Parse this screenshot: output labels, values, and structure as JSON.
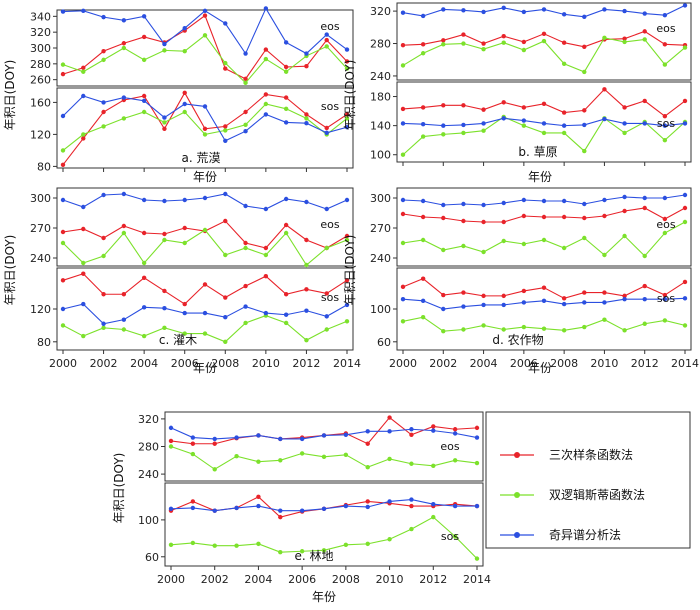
{
  "figure": {
    "xlabel": "年份",
    "ylabel": "年积日(DOY)",
    "eos_label": "eos",
    "sos_label": "sos"
  },
  "legend": {
    "placement": "right of panel e",
    "entries": [
      {
        "label": "三次样条函数法",
        "color": "#e8232a"
      },
      {
        "label": "双逻辑斯蒂函数法",
        "color": "#7ce12b"
      },
      {
        "label": "奇异谱分析法",
        "color": "#2b4fe0"
      }
    ]
  },
  "chart_data": [
    {
      "type": "line",
      "title": "a. 荒漠",
      "x": [
        2000,
        2001,
        2002,
        2003,
        2004,
        2005,
        2006,
        2007,
        2008,
        2009,
        2010,
        2011,
        2012,
        2013,
        2014
      ],
      "xticks": [],
      "eos_yticks": [
        260,
        280,
        300,
        320,
        340
      ],
      "sos_yticks": [
        80,
        120,
        160
      ],
      "eos_ylim": [
        252,
        348
      ],
      "sos_ylim": [
        78,
        178
      ],
      "eos_series": [
        {
          "name": "三次样条函数法",
          "color": "#e8232a",
          "values": [
            267,
            275,
            296,
            306,
            314,
            307,
            322,
            341,
            274,
            261,
            298,
            276,
            277,
            310,
            283
          ]
        },
        {
          "name": "双逻辑斯蒂函数法",
          "color": "#7ce12b",
          "values": [
            279,
            270,
            285,
            300,
            285,
            297,
            296,
            316,
            281,
            256,
            286,
            270,
            290,
            302,
            274
          ]
        },
        {
          "name": "奇异谱分析法",
          "color": "#2b4fe0",
          "values": [
            346,
            347,
            339,
            335,
            340,
            305,
            325,
            347,
            331,
            293,
            350,
            307,
            293,
            317,
            298
          ]
        }
      ],
      "sos_series": [
        {
          "name": "三次样条函数法",
          "color": "#e8232a",
          "values": [
            82,
            115,
            148,
            163,
            168,
            127,
            172,
            127,
            130,
            148,
            170,
            166,
            145,
            128,
            145
          ]
        },
        {
          "name": "双逻辑斯蒂函数法",
          "color": "#7ce12b",
          "values": [
            100,
            120,
            130,
            140,
            148,
            135,
            148,
            120,
            125,
            132,
            158,
            152,
            140,
            120,
            140
          ]
        },
        {
          "name": "奇异谱分析法",
          "color": "#2b4fe0",
          "values": [
            143,
            168,
            160,
            166,
            162,
            141,
            158,
            155,
            112,
            124,
            145,
            135,
            134,
            122,
            129
          ]
        }
      ]
    },
    {
      "type": "line",
      "title": "b. 草原",
      "x": [
        2000,
        2001,
        2002,
        2003,
        2004,
        2005,
        2006,
        2007,
        2008,
        2009,
        2010,
        2011,
        2012,
        2013,
        2014
      ],
      "xticks": [],
      "eos_yticks": [
        240,
        280,
        320
      ],
      "sos_yticks": [
        100,
        140,
        180
      ],
      "eos_ylim": [
        235,
        330
      ],
      "sos_ylim": [
        90,
        200
      ],
      "eos_series": [
        {
          "name": "三次样条函数法",
          "color": "#e8232a",
          "values": [
            278,
            279,
            284,
            291,
            280,
            289,
            282,
            292,
            281,
            276,
            285,
            286,
            295,
            279,
            278
          ]
        },
        {
          "name": "双逻辑斯蒂函数法",
          "color": "#7ce12b",
          "values": [
            253,
            268,
            279,
            280,
            273,
            281,
            272,
            283,
            255,
            245,
            287,
            282,
            285,
            254,
            275
          ]
        },
        {
          "name": "奇异谱分析法",
          "color": "#2b4fe0",
          "values": [
            318,
            314,
            322,
            321,
            319,
            324,
            319,
            322,
            316,
            313,
            322,
            320,
            317,
            315,
            327
          ]
        }
      ],
      "sos_series": [
        {
          "name": "三次样条函数法",
          "color": "#e8232a",
          "values": [
            163,
            165,
            168,
            168,
            162,
            172,
            165,
            170,
            158,
            161,
            190,
            165,
            174,
            153,
            174
          ]
        },
        {
          "name": "双逻辑斯蒂函数法",
          "color": "#7ce12b",
          "values": [
            100,
            125,
            128,
            130,
            133,
            152,
            140,
            130,
            130,
            105,
            150,
            130,
            145,
            120,
            145
          ]
        },
        {
          "name": "奇异谱分析法",
          "color": "#2b4fe0",
          "values": [
            143,
            142,
            140,
            141,
            143,
            150,
            147,
            143,
            140,
            141,
            149,
            143,
            143,
            140,
            143
          ]
        }
      ]
    },
    {
      "type": "line",
      "title": "c. 灌木",
      "x": [
        2000,
        2001,
        2002,
        2003,
        2004,
        2005,
        2006,
        2007,
        2008,
        2009,
        2010,
        2011,
        2012,
        2013,
        2014
      ],
      "xticks": [
        "2000",
        "2002",
        "2004",
        "2006",
        "2008",
        "2010",
        "2012",
        "2014"
      ],
      "eos_yticks": [
        240,
        270,
        300
      ],
      "sos_yticks": [
        80,
        120
      ],
      "eos_ylim": [
        232,
        310
      ],
      "sos_ylim": [
        70,
        170
      ],
      "eos_series": [
        {
          "name": "三次样条函数法",
          "color": "#e8232a",
          "values": [
            266,
            269,
            260,
            272,
            265,
            264,
            270,
            267,
            277,
            255,
            250,
            273,
            258,
            250,
            262
          ]
        },
        {
          "name": "双逻辑斯蒂函数法",
          "color": "#7ce12b",
          "values": [
            255,
            235,
            242,
            265,
            235,
            258,
            255,
            268,
            243,
            250,
            243,
            265,
            233,
            250,
            258
          ]
        },
        {
          "name": "奇异谱分析法",
          "color": "#2b4fe0",
          "values": [
            298,
            291,
            303,
            304,
            298,
            297,
            298,
            300,
            304,
            292,
            289,
            299,
            296,
            289,
            298
          ]
        }
      ],
      "sos_series": [
        {
          "name": "三次样条函数法",
          "color": "#e8232a",
          "values": [
            155,
            163,
            138,
            138,
            158,
            142,
            126,
            150,
            134,
            148,
            160,
            138,
            144,
            139,
            155
          ]
        },
        {
          "name": "双逻辑斯蒂函数法",
          "color": "#7ce12b",
          "values": [
            100,
            87,
            97,
            95,
            87,
            97,
            90,
            90,
            80,
            103,
            112,
            103,
            82,
            95,
            105
          ]
        },
        {
          "name": "奇异谱分析法",
          "color": "#2b4fe0",
          "values": [
            120,
            126,
            102,
            107,
            122,
            121,
            115,
            115,
            110,
            123,
            115,
            113,
            118,
            111,
            125
          ]
        }
      ]
    },
    {
      "type": "line",
      "title": "d. 农作物",
      "x": [
        2000,
        2001,
        2002,
        2003,
        2004,
        2005,
        2006,
        2007,
        2008,
        2009,
        2010,
        2011,
        2012,
        2013,
        2014
      ],
      "xticks": [
        "2000",
        "2002",
        "2004",
        "2006",
        "2008",
        "2010",
        "2012",
        "2014"
      ],
      "eos_yticks": [
        240,
        270,
        300
      ],
      "sos_yticks": [
        60,
        100
      ],
      "eos_ylim": [
        232,
        310
      ],
      "sos_ylim": [
        50,
        150
      ],
      "eos_series": [
        {
          "name": "三次样条函数法",
          "color": "#e8232a",
          "values": [
            284,
            281,
            280,
            277,
            276,
            276,
            282,
            281,
            281,
            280,
            282,
            287,
            290,
            279,
            290
          ]
        },
        {
          "name": "双逻辑斯蒂函数法",
          "color": "#7ce12b",
          "values": [
            255,
            258,
            248,
            252,
            246,
            257,
            254,
            258,
            250,
            260,
            243,
            262,
            242,
            265,
            276
          ]
        },
        {
          "name": "奇异谱分析法",
          "color": "#2b4fe0",
          "values": [
            298,
            297,
            293,
            294,
            293,
            295,
            298,
            297,
            297,
            294,
            298,
            301,
            300,
            300,
            303
          ]
        }
      ],
      "sos_series": [
        {
          "name": "三次样条函数法",
          "color": "#e8232a",
          "values": [
            127,
            137,
            117,
            120,
            116,
            116,
            122,
            126,
            113,
            120,
            120,
            116,
            128,
            117,
            133
          ]
        },
        {
          "name": "双逻辑斯蒂函数法",
          "color": "#7ce12b",
          "values": [
            85,
            90,
            73,
            75,
            80,
            75,
            78,
            76,
            74,
            78,
            87,
            74,
            82,
            86,
            80
          ]
        },
        {
          "name": "奇异谱分析法",
          "color": "#2b4fe0",
          "values": [
            112,
            110,
            100,
            103,
            105,
            105,
            108,
            110,
            106,
            108,
            108,
            112,
            112,
            112,
            113
          ]
        }
      ]
    },
    {
      "type": "line",
      "title": "e. 林地",
      "x": [
        2000,
        2001,
        2002,
        2003,
        2004,
        2005,
        2006,
        2007,
        2008,
        2009,
        2010,
        2011,
        2012,
        2013,
        2014
      ],
      "xticks": [
        "2000",
        "2002",
        "2004",
        "2006",
        "2008",
        "2010",
        "2012",
        "2014"
      ],
      "eos_yticks": [
        240,
        280,
        320
      ],
      "sos_yticks": [
        60,
        100
      ],
      "eos_ylim": [
        230,
        330
      ],
      "sos_ylim": [
        50,
        140
      ],
      "eos_series": [
        {
          "name": "三次样条函数法",
          "color": "#e8232a",
          "values": [
            288,
            284,
            284,
            292,
            296,
            291,
            293,
            296,
            299,
            284,
            322,
            297,
            309,
            305,
            307
          ]
        },
        {
          "name": "双逻辑斯蒂函数法",
          "color": "#7ce12b",
          "values": [
            280,
            269,
            247,
            266,
            258,
            260,
            270,
            265,
            268,
            250,
            262,
            255,
            252,
            260,
            256
          ]
        },
        {
          "name": "奇异谱分析法",
          "color": "#2b4fe0",
          "values": [
            307,
            293,
            291,
            293,
            296,
            291,
            291,
            296,
            297,
            302,
            302,
            305,
            303,
            299,
            293
          ]
        }
      ],
      "sos_series": [
        {
          "name": "三次样条函数法",
          "color": "#e8232a",
          "values": [
            110,
            120,
            110,
            113,
            125,
            103,
            109,
            112,
            116,
            120,
            118,
            115,
            115,
            117,
            115
          ]
        },
        {
          "name": "双逻辑斯蒂函数法",
          "color": "#7ce12b",
          "values": [
            73,
            75,
            72,
            72,
            74,
            65,
            66,
            67,
            73,
            74,
            79,
            90,
            103,
            82,
            58
          ]
        },
        {
          "name": "奇异谱分析法",
          "color": "#2b4fe0",
          "values": [
            112,
            113,
            110,
            113,
            115,
            110,
            110,
            112,
            115,
            114,
            120,
            122,
            117,
            115,
            115
          ]
        }
      ]
    }
  ]
}
